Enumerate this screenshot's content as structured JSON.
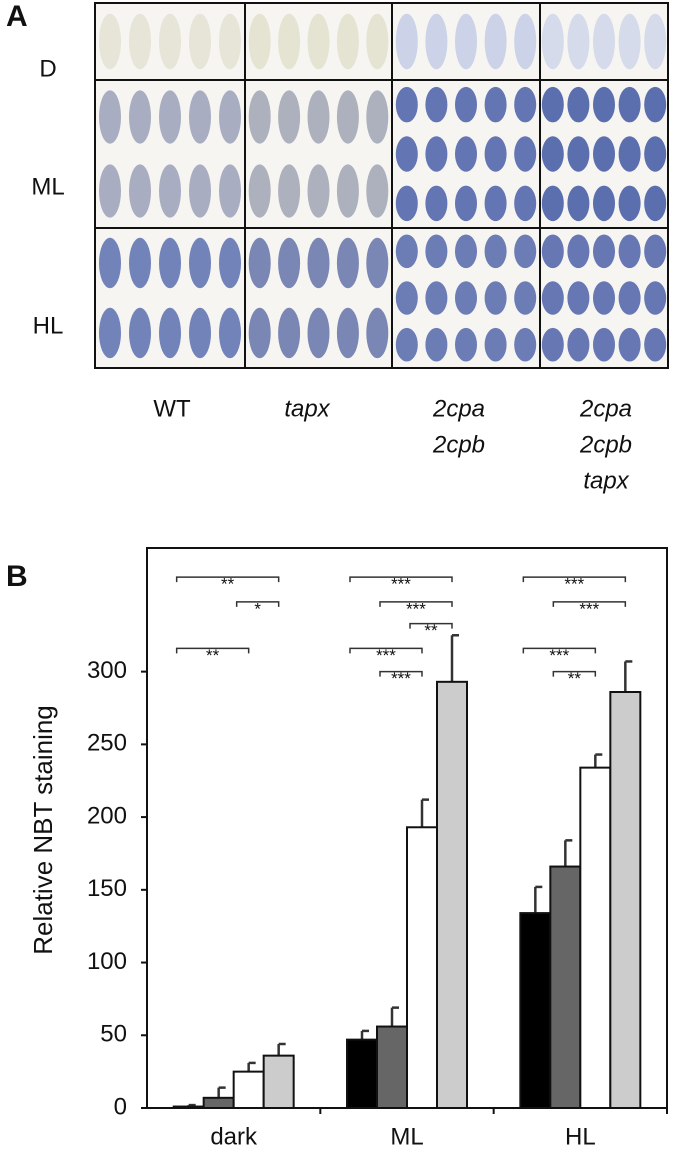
{
  "panel_a": {
    "label": "A",
    "rows": [
      "D",
      "ML",
      "HL"
    ],
    "columns": [
      [
        "WT"
      ],
      [
        "tapx"
      ],
      [
        "2cpa",
        "2cpb"
      ],
      [
        "2cpa",
        "2cpb",
        "tapx"
      ]
    ]
  },
  "chart_data": {
    "type": "bar",
    "panel_label": "B",
    "ylabel": "Relative NBT staining",
    "categories": [
      "dark",
      "ML",
      "HL"
    ],
    "series": [
      {
        "color": "#000000",
        "values": [
          1,
          47,
          134
        ],
        "errors": [
          1,
          6,
          18
        ]
      },
      {
        "color": "#666666",
        "values": [
          7,
          56,
          166
        ],
        "errors": [
          7,
          13,
          18
        ]
      },
      {
        "color": "#ffffff",
        "values": [
          25,
          193,
          234
        ],
        "errors": [
          6,
          19,
          9
        ]
      },
      {
        "color": "#cccccc",
        "values": [
          36,
          293,
          286
        ],
        "errors": [
          8,
          32,
          21
        ]
      }
    ],
    "ylim": [
      0,
      385
    ],
    "yticks": [
      0,
      50,
      100,
      150,
      200,
      250,
      300
    ],
    "annotations": [
      {
        "category": 0,
        "from": 0,
        "to": 3,
        "y": 365,
        "text": "**"
      },
      {
        "category": 0,
        "from": 2,
        "to": 3,
        "y": 348,
        "text": "*"
      },
      {
        "category": 0,
        "from": 0,
        "to": 2,
        "y": 316,
        "text": "**"
      },
      {
        "category": 1,
        "from": 0,
        "to": 3,
        "y": 365,
        "text": "***"
      },
      {
        "category": 1,
        "from": 1,
        "to": 3,
        "y": 348,
        "text": "***"
      },
      {
        "category": 1,
        "from": 2,
        "to": 3,
        "y": 333,
        "text": "**"
      },
      {
        "category": 1,
        "from": 0,
        "to": 2,
        "y": 316,
        "text": "***"
      },
      {
        "category": 1,
        "from": 1,
        "to": 2,
        "y": 300,
        "text": "***"
      },
      {
        "category": 2,
        "from": 0,
        "to": 3,
        "y": 365,
        "text": "***"
      },
      {
        "category": 2,
        "from": 1,
        "to": 3,
        "y": 348,
        "text": "***"
      },
      {
        "category": 2,
        "from": 0,
        "to": 2,
        "y": 316,
        "text": "***"
      },
      {
        "category": 2,
        "from": 1,
        "to": 2,
        "y": 300,
        "text": "**"
      }
    ]
  }
}
